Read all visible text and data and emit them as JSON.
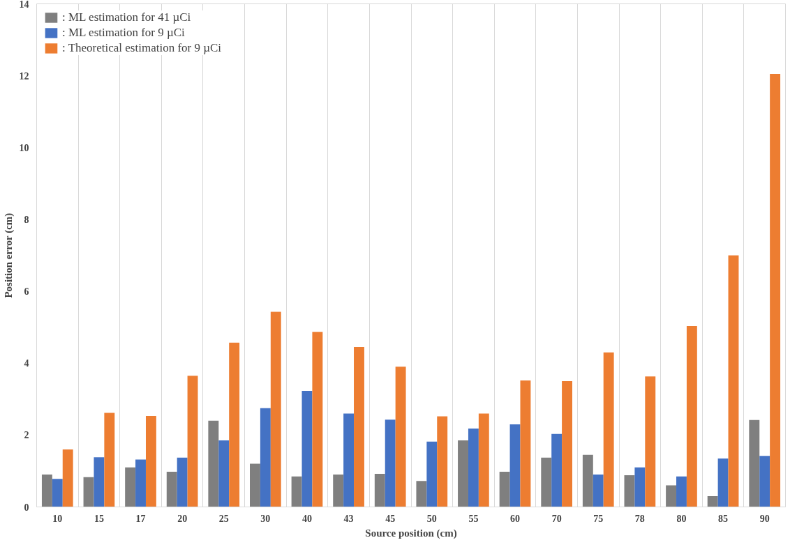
{
  "chart_data": {
    "type": "bar",
    "xlabel": "Source position (cm)",
    "ylabel": "Position error (cm)",
    "categories": [
      "10",
      "15",
      "17",
      "20",
      "25",
      "30",
      "40",
      "43",
      "45",
      "50",
      "55",
      "60",
      "70",
      "75",
      "78",
      "80",
      "85",
      "90"
    ],
    "series": [
      {
        "name": ": ML estimation for 41 µCi",
        "color": "#7f7f7f",
        "values": [
          0.9,
          0.83,
          1.1,
          0.98,
          2.4,
          1.2,
          0.85,
          0.9,
          0.92,
          0.72,
          1.85,
          0.98,
          1.37,
          1.45,
          0.88,
          0.6,
          0.3,
          2.42
        ]
      },
      {
        "name": ": ML estimation for 9 µCi",
        "color": "#4472c4",
        "values": [
          0.78,
          1.38,
          1.32,
          1.37,
          1.85,
          2.75,
          3.23,
          2.6,
          2.43,
          1.82,
          2.18,
          2.3,
          2.03,
          0.9,
          1.1,
          0.85,
          1.35,
          1.42
        ]
      },
      {
        "name": ": Theoretical estimation for 9 µCi",
        "color": "#ed7d31",
        "values": [
          1.6,
          2.62,
          2.53,
          3.65,
          4.57,
          5.43,
          4.87,
          4.45,
          3.9,
          2.52,
          2.6,
          3.52,
          3.5,
          4.3,
          3.63,
          5.03,
          7.0,
          12.05
        ]
      }
    ],
    "ylim": [
      0,
      14
    ],
    "yticks": [
      0,
      2,
      4,
      6,
      8,
      10,
      12,
      14
    ],
    "grid": "x",
    "legend": "top left"
  }
}
